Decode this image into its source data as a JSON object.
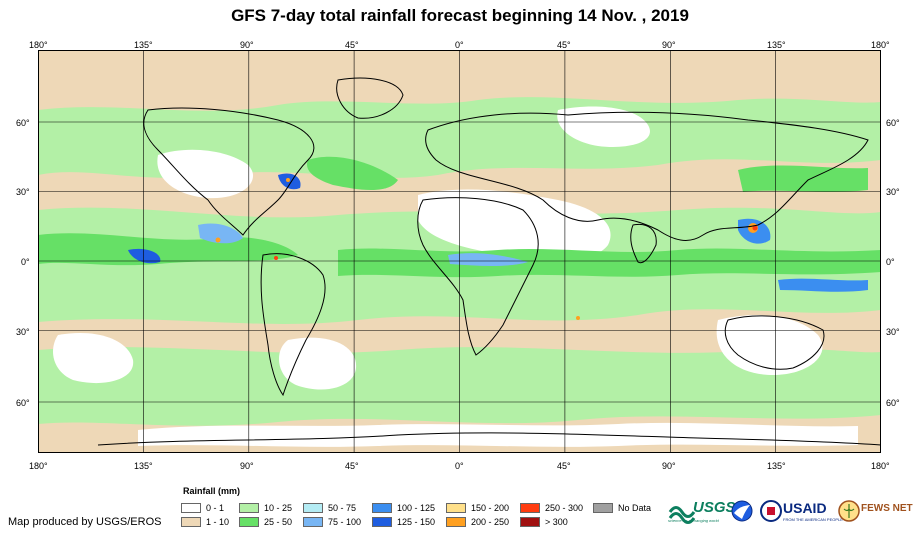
{
  "title": "GFS 7-day total rainfall forecast beginning 14 Nov. , 2019",
  "lon_labels": [
    "180°",
    "135°",
    "90°",
    "45°",
    "0°",
    "45°",
    "90°",
    "135°",
    "180°"
  ],
  "lat_labels": [
    "60°",
    "30°",
    "0°",
    "30°",
    "60°"
  ],
  "legend": {
    "title": "Rainfall (mm)",
    "items": [
      {
        "label": "0 - 1",
        "color": "#ffffff"
      },
      {
        "label": "1 - 10",
        "color": "#eed8b7"
      },
      {
        "label": "10 - 25",
        "color": "#b3f0a6"
      },
      {
        "label": "25 - 50",
        "color": "#66e066"
      },
      {
        "label": "50 - 75",
        "color": "#b4ecf4"
      },
      {
        "label": "75 - 100",
        "color": "#78b6f4"
      },
      {
        "label": "100 - 125",
        "color": "#3b8ef0"
      },
      {
        "label": "125 - 150",
        "color": "#1e5de0"
      },
      {
        "label": "150 - 200",
        "color": "#ffe08a"
      },
      {
        "label": "200 - 250",
        "color": "#ffa020"
      },
      {
        "label": "250 - 300",
        "color": "#ff3c10"
      },
      {
        "label": "> 300",
        "color": "#a01010"
      },
      {
        "label": "No Data",
        "color": "#a0a0a0"
      }
    ]
  },
  "credit": "Map produced by USGS/EROS",
  "logos": {
    "usgs": "USGS",
    "usgs_tagline": "science for a changing world",
    "usaid": "USAID",
    "usaid_tagline": "FROM THE AMERICAN PEOPLE",
    "fews": "FEWS NET",
    "noaa_icon": "noaa-logo-icon",
    "usaid_seal_icon": "usaid-seal-icon"
  }
}
